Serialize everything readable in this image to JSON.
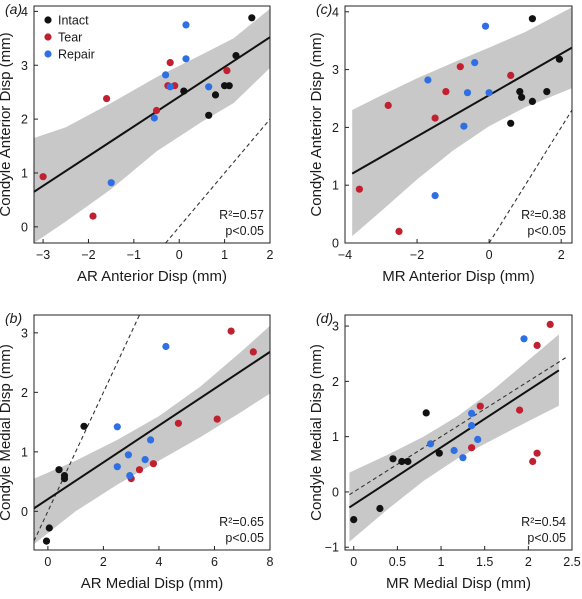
{
  "colors": {
    "Intact": "#111111",
    "Tear": "#c0202f",
    "Repair": "#2f6fe4",
    "band": "#c8c8c8",
    "fit": "#111111",
    "identity": "#333333"
  },
  "legend": [
    {
      "name": "Intact",
      "color": "#111111"
    },
    {
      "name": "Tear",
      "color": "#c0202f"
    },
    {
      "name": "Repair",
      "color": "#2f6fe4"
    }
  ],
  "chart_data": [
    {
      "panel": "(a)",
      "type": "scatter",
      "xlabel": "AR Anterior Disp (mm)",
      "ylabel": "Condyle Anterior Disp (mm)",
      "xlim": [
        -3.2,
        2
      ],
      "ylim": [
        -0.3,
        4.1
      ],
      "xticks": [
        -3,
        -2,
        -1,
        0,
        1,
        2
      ],
      "yticks": [
        0,
        1,
        2,
        3,
        4
      ],
      "r2_label": "R²=0.57",
      "p_label": "p<0.05",
      "fit": {
        "x": [
          -3.2,
          2
        ],
        "y": [
          0.65,
          3.52
        ]
      },
      "band": {
        "x": [
          -3.2,
          -2.5,
          -1.5,
          -0.5,
          0.5,
          1.2,
          2
        ],
        "upper": [
          1.65,
          1.85,
          2.3,
          2.78,
          3.2,
          3.5,
          4.05
        ],
        "lower": [
          -0.3,
          0.1,
          0.7,
          1.4,
          1.95,
          2.3,
          2.95
        ]
      },
      "identity": {
        "x": [
          -0.3,
          2
        ],
        "y": [
          -0.3,
          2
        ]
      },
      "series": [
        {
          "name": "Intact",
          "points": [
            [
              1.6,
              3.88
            ],
            [
              1.25,
              3.18
            ],
            [
              1.1,
              2.62
            ],
            [
              1.0,
              2.62
            ],
            [
              0.8,
              2.45
            ],
            [
              0.65,
              2.07
            ],
            [
              0.1,
              2.52
            ]
          ]
        },
        {
          "name": "Tear",
          "points": [
            [
              -3.0,
              0.93
            ],
            [
              -1.9,
              0.2
            ],
            [
              -1.6,
              2.38
            ],
            [
              -0.5,
              2.16
            ],
            [
              -0.2,
              3.05
            ],
            [
              -0.1,
              2.62
            ],
            [
              1.05,
              2.9
            ],
            [
              -0.25,
              2.62
            ]
          ]
        },
        {
          "name": "Repair",
          "points": [
            [
              -1.5,
              0.82
            ],
            [
              -0.55,
              2.02
            ],
            [
              -0.3,
              2.82
            ],
            [
              0.15,
              3.75
            ],
            [
              0.15,
              3.12
            ],
            [
              0.65,
              2.6
            ],
            [
              -0.2,
              2.6
            ]
          ]
        }
      ]
    },
    {
      "panel": "(c)",
      "type": "scatter",
      "xlabel": "MR Anterior Disp (mm)",
      "ylabel": "Condyle Anterior Disp (mm)",
      "xlim": [
        -4,
        2.3
      ],
      "ylim": [
        0,
        4.1
      ],
      "xticks": [
        -4,
        -2,
        0,
        2
      ],
      "yticks": [
        0,
        1,
        2,
        3,
        4
      ],
      "r2_label": "R²=0.38",
      "p_label": "p<0.05",
      "fit": {
        "x": [
          -3.8,
          2.3
        ],
        "y": [
          1.2,
          3.38
        ]
      },
      "band": {
        "x": [
          -3.8,
          -3,
          -2,
          -1,
          0,
          1,
          2.3
        ],
        "upper": [
          2.3,
          2.55,
          2.85,
          3.12,
          3.38,
          3.65,
          4.08
        ],
        "lower": [
          0.12,
          0.55,
          1.1,
          1.6,
          2.02,
          2.35,
          2.68
        ]
      },
      "identity": {
        "x": [
          0,
          2.3
        ],
        "y": [
          0,
          2.3
        ]
      },
      "series": [
        {
          "name": "Intact",
          "points": [
            [
              1.2,
              3.88
            ],
            [
              1.95,
              3.18
            ],
            [
              0.85,
              2.62
            ],
            [
              1.6,
              2.62
            ],
            [
              1.2,
              2.45
            ],
            [
              0.6,
              2.07
            ],
            [
              0.9,
              2.52
            ]
          ]
        },
        {
          "name": "Tear",
          "points": [
            [
              -3.6,
              0.93
            ],
            [
              -2.5,
              0.2
            ],
            [
              -2.8,
              2.38
            ],
            [
              -1.5,
              2.16
            ],
            [
              -0.8,
              3.05
            ],
            [
              -1.2,
              2.62
            ],
            [
              0.6,
              2.9
            ]
          ]
        },
        {
          "name": "Repair",
          "points": [
            [
              -1.5,
              0.82
            ],
            [
              -0.7,
              2.02
            ],
            [
              -1.7,
              2.82
            ],
            [
              -0.1,
              3.75
            ],
            [
              -0.4,
              3.12
            ],
            [
              -0.6,
              2.6
            ],
            [
              0,
              2.6
            ]
          ]
        }
      ]
    },
    {
      "panel": "(b)",
      "type": "scatter",
      "xlabel": "AR Medial Disp (mm)",
      "ylabel": "Condyle Medial Disp (mm)",
      "xlim": [
        -0.5,
        8
      ],
      "ylim": [
        -0.65,
        3.3
      ],
      "xticks": [
        0,
        2,
        4,
        6,
        8
      ],
      "yticks": [
        0,
        1,
        2,
        3
      ],
      "r2_label": "R²=0.65",
      "p_label": "p<0.05",
      "fit": {
        "x": [
          -0.5,
          8
        ],
        "y": [
          0.05,
          2.68
        ]
      },
      "band": {
        "x": [
          -0.5,
          1,
          2.5,
          4,
          5.5,
          7,
          8
        ],
        "upper": [
          0.55,
          0.85,
          1.2,
          1.6,
          2.1,
          2.7,
          3.12
        ],
        "lower": [
          -0.55,
          0.0,
          0.45,
          0.85,
          1.25,
          1.68,
          1.98
        ]
      },
      "identity": {
        "x": [
          -0.5,
          3.3
        ],
        "y": [
          -0.5,
          3.3
        ]
      },
      "series": [
        {
          "name": "Intact",
          "points": [
            [
              1.3,
              1.43
            ],
            [
              0.4,
              0.7
            ],
            [
              0.6,
              0.6
            ],
            [
              0.6,
              0.55
            ],
            [
              0.05,
              -0.28
            ],
            [
              -0.05,
              -0.5
            ]
          ]
        },
        {
          "name": "Tear",
          "points": [
            [
              3.0,
              0.55
            ],
            [
              3.3,
              0.7
            ],
            [
              3.8,
              0.8
            ],
            [
              4.7,
              1.48
            ],
            [
              6.1,
              1.55
            ],
            [
              6.6,
              3.03
            ],
            [
              7.4,
              2.68
            ]
          ]
        },
        {
          "name": "Repair",
          "points": [
            [
              2.5,
              1.42
            ],
            [
              2.5,
              0.75
            ],
            [
              2.9,
              0.95
            ],
            [
              2.95,
              0.6
            ],
            [
              3.5,
              0.87
            ],
            [
              3.7,
              1.2
            ],
            [
              4.25,
              2.77
            ]
          ]
        }
      ]
    },
    {
      "panel": "(d)",
      "type": "scatter",
      "xlabel": "MR Medial Disp (mm)",
      "ylabel": "Condyle Medial Disp (mm)",
      "xlim": [
        -0.1,
        2.5
      ],
      "ylim": [
        -1.05,
        3.2
      ],
      "xticks": [
        0,
        0.5,
        1,
        1.5,
        2,
        2.5
      ],
      "yticks": [
        -1,
        0,
        1,
        2,
        3
      ],
      "r2_label": "R²=0.54",
      "p_label": "p<0.05",
      "fit": {
        "x": [
          -0.05,
          2.35
        ],
        "y": [
          -0.28,
          2.2
        ]
      },
      "band": {
        "x": [
          -0.05,
          0.4,
          0.8,
          1.2,
          1.6,
          2.0,
          2.35
        ],
        "upper": [
          0.35,
          0.68,
          1.0,
          1.38,
          1.85,
          2.38,
          2.85
        ],
        "lower": [
          -0.9,
          -0.3,
          0.2,
          0.62,
          0.95,
          1.28,
          1.56
        ]
      },
      "identity": {
        "x": [
          -0.05,
          2.45
        ],
        "y": [
          -0.05,
          2.45
        ]
      },
      "series": [
        {
          "name": "Intact",
          "points": [
            [
              0.0,
              -0.5
            ],
            [
              0.3,
              -0.3
            ],
            [
              0.45,
              0.6
            ],
            [
              0.55,
              0.55
            ],
            [
              0.62,
              0.55
            ],
            [
              0.83,
              1.43
            ],
            [
              0.98,
              0.7
            ]
          ]
        },
        {
          "name": "Tear",
          "points": [
            [
              1.35,
              0.8
            ],
            [
              1.45,
              1.55
            ],
            [
              1.9,
              1.48
            ],
            [
              2.05,
              0.55
            ],
            [
              2.1,
              0.7
            ],
            [
              2.1,
              2.65
            ],
            [
              2.25,
              3.03
            ]
          ]
        },
        {
          "name": "Repair",
          "points": [
            [
              0.88,
              0.87
            ],
            [
              1.15,
              0.75
            ],
            [
              1.25,
              0.62
            ],
            [
              1.35,
              1.42
            ],
            [
              1.35,
              1.2
            ],
            [
              1.42,
              0.95
            ],
            [
              1.95,
              2.77
            ]
          ]
        }
      ]
    }
  ]
}
